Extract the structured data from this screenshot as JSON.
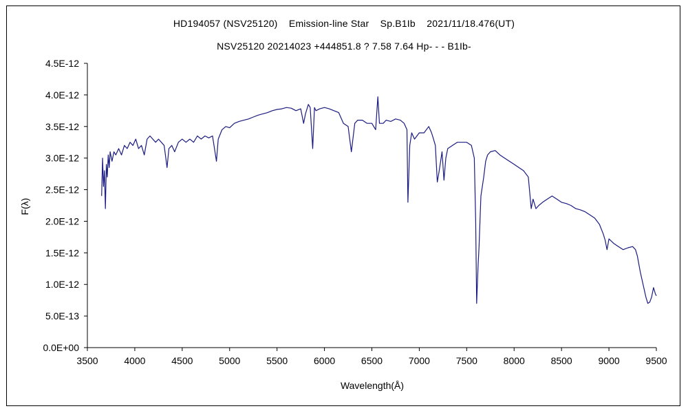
{
  "chart_data": {
    "type": "line",
    "title": "HD194057 (NSV25120)    Emission-line Star    Sp.B1Ib    2021/11/18.476(UT)",
    "subtitle": "NSV25120 20214023 +444851.8 ? 7.58 7.64 Hp- - - B1Ib-",
    "xlabel": "Wavelength(Å)",
    "ylabel": "F(λ)",
    "xlim": [
      3500,
      9500
    ],
    "ylim": [
      0,
      4.5e-12
    ],
    "x_ticks": [
      3500,
      4000,
      4500,
      5000,
      5500,
      6000,
      6500,
      7000,
      7500,
      8000,
      8500,
      9000,
      9500
    ],
    "x_tick_labels": [
      "3500",
      "4000",
      "4500",
      "5000",
      "5500",
      "6000",
      "6500",
      "7000",
      "7500",
      "8000",
      "8500",
      "9000",
      "9500"
    ],
    "y_ticks": [
      0,
      5e-13,
      1e-12,
      1.5e-12,
      2e-12,
      2.5e-12,
      3e-12,
      3.5e-12,
      4e-12,
      4.5e-12
    ],
    "y_tick_labels": [
      "0.0E+00",
      "5.0E-13",
      "1.0E-12",
      "1.5E-12",
      "2.0E-12",
      "2.5E-12",
      "3.0E-12",
      "3.5E-12",
      "4.0E-12",
      "4.5E-12"
    ],
    "grid": false,
    "legend": "none",
    "line_color": "#1a1a80",
    "series": [
      {
        "x": [
          3650,
          3660,
          3670,
          3680,
          3690,
          3700,
          3710,
          3720,
          3730,
          3740,
          3760,
          3780,
          3800,
          3830,
          3860,
          3890,
          3920,
          3950,
          3980,
          4010,
          4040,
          4070,
          4100,
          4130,
          4160,
          4190,
          4220,
          4250,
          4280,
          4310,
          4340,
          4360,
          4390,
          4420,
          4460,
          4500,
          4540,
          4580,
          4620,
          4660,
          4700,
          4740,
          4780,
          4820,
          4861,
          4880,
          4920,
          4960,
          5000,
          5050,
          5100,
          5150,
          5200,
          5250,
          5300,
          5350,
          5400,
          5450,
          5500,
          5550,
          5600,
          5650,
          5700,
          5750,
          5780,
          5800,
          5830,
          5850,
          5876,
          5895,
          5910,
          5950,
          6000,
          6050,
          6100,
          6150,
          6200,
          6250,
          6284,
          6320,
          6350,
          6400,
          6450,
          6500,
          6540,
          6563,
          6580,
          6620,
          6650,
          6700,
          6750,
          6800,
          6840,
          6870,
          6880,
          6900,
          6920,
          6950,
          7000,
          7050,
          7100,
          7130,
          7150,
          7170,
          7190,
          7210,
          7240,
          7260,
          7280,
          7300,
          7350,
          7400,
          7450,
          7500,
          7550,
          7580,
          7595,
          7605,
          7620,
          7630,
          7650,
          7680,
          7700,
          7720,
          7750,
          7800,
          7850,
          7900,
          7950,
          8000,
          8050,
          8100,
          8150,
          8180,
          8200,
          8230,
          8260,
          8300,
          8350,
          8400,
          8450,
          8500,
          8550,
          8600,
          8650,
          8700,
          8750,
          8800,
          8850,
          8900,
          8940,
          8960,
          8980,
          9000,
          9050,
          9100,
          9150,
          9200,
          9250,
          9280,
          9300,
          9330,
          9360,
          9390,
          9410,
          9430,
          9450,
          9470,
          9490,
          9500
        ],
        "y": [
          2.4e-12,
          3e-12,
          2.55e-12,
          2.8e-12,
          2.2e-12,
          2.9e-12,
          2.7e-12,
          3.05e-12,
          2.85e-12,
          3.1e-12,
          2.95e-12,
          3.1e-12,
          3.05e-12,
          3.15e-12,
          3.05e-12,
          3.2e-12,
          3.15e-12,
          3.25e-12,
          3.2e-12,
          3.3e-12,
          3.15e-12,
          3.2e-12,
          3.05e-12,
          3.3e-12,
          3.35e-12,
          3.3e-12,
          3.25e-12,
          3.3e-12,
          3.25e-12,
          3.2e-12,
          2.85e-12,
          3.15e-12,
          3.2e-12,
          3.1e-12,
          3.25e-12,
          3.3e-12,
          3.25e-12,
          3.3e-12,
          3.25e-12,
          3.35e-12,
          3.3e-12,
          3.35e-12,
          3.32e-12,
          3.35e-12,
          2.95e-12,
          3.3e-12,
          3.45e-12,
          3.5e-12,
          3.48e-12,
          3.55e-12,
          3.58e-12,
          3.6e-12,
          3.62e-12,
          3.65e-12,
          3.68e-12,
          3.7e-12,
          3.72e-12,
          3.75e-12,
          3.77e-12,
          3.78e-12,
          3.8e-12,
          3.79e-12,
          3.75e-12,
          3.78e-12,
          3.55e-12,
          3.7e-12,
          3.85e-12,
          3.8e-12,
          3.15e-12,
          3.8e-12,
          3.75e-12,
          3.78e-12,
          3.8e-12,
          3.78e-12,
          3.75e-12,
          3.72e-12,
          3.55e-12,
          3.5e-12,
          3.1e-12,
          3.55e-12,
          3.6e-12,
          3.6e-12,
          3.55e-12,
          3.55e-12,
          3.45e-12,
          3.97e-12,
          3.55e-12,
          3.55e-12,
          3.6e-12,
          3.58e-12,
          3.62e-12,
          3.6e-12,
          3.55e-12,
          3.45e-12,
          2.3e-12,
          3.2e-12,
          3.4e-12,
          3.3e-12,
          3.4e-12,
          3.4e-12,
          3.5e-12,
          3.4e-12,
          3.3e-12,
          3.2e-12,
          2.62e-12,
          2.8e-12,
          3.1e-12,
          2.65e-12,
          3e-12,
          3.15e-12,
          3.2e-12,
          3.25e-12,
          3.25e-12,
          3.25e-12,
          3.2e-12,
          3e-12,
          2e-12,
          7e-13,
          1.3e-12,
          1.6e-12,
          2.4e-12,
          2.7e-12,
          2.95e-12,
          3.05e-12,
          3.1e-12,
          3.12e-12,
          3.05e-12,
          3e-12,
          2.95e-12,
          2.9e-12,
          2.85e-12,
          2.8e-12,
          2.7e-12,
          2.2e-12,
          2.35e-12,
          2.2e-12,
          2.25e-12,
          2.3e-12,
          2.35e-12,
          2.4e-12,
          2.35e-12,
          2.3e-12,
          2.28e-12,
          2.25e-12,
          2.2e-12,
          2.18e-12,
          2.15e-12,
          2.1e-12,
          2.05e-12,
          1.95e-12,
          1.8e-12,
          1.7e-12,
          1.55e-12,
          1.72e-12,
          1.65e-12,
          1.6e-12,
          1.55e-12,
          1.58e-12,
          1.6e-12,
          1.55e-12,
          1.45e-12,
          1.2e-12,
          1e-12,
          8e-13,
          7e-13,
          7.2e-13,
          8e-13,
          9.5e-13,
          8.5e-13,
          8.2e-13
        ]
      }
    ]
  }
}
